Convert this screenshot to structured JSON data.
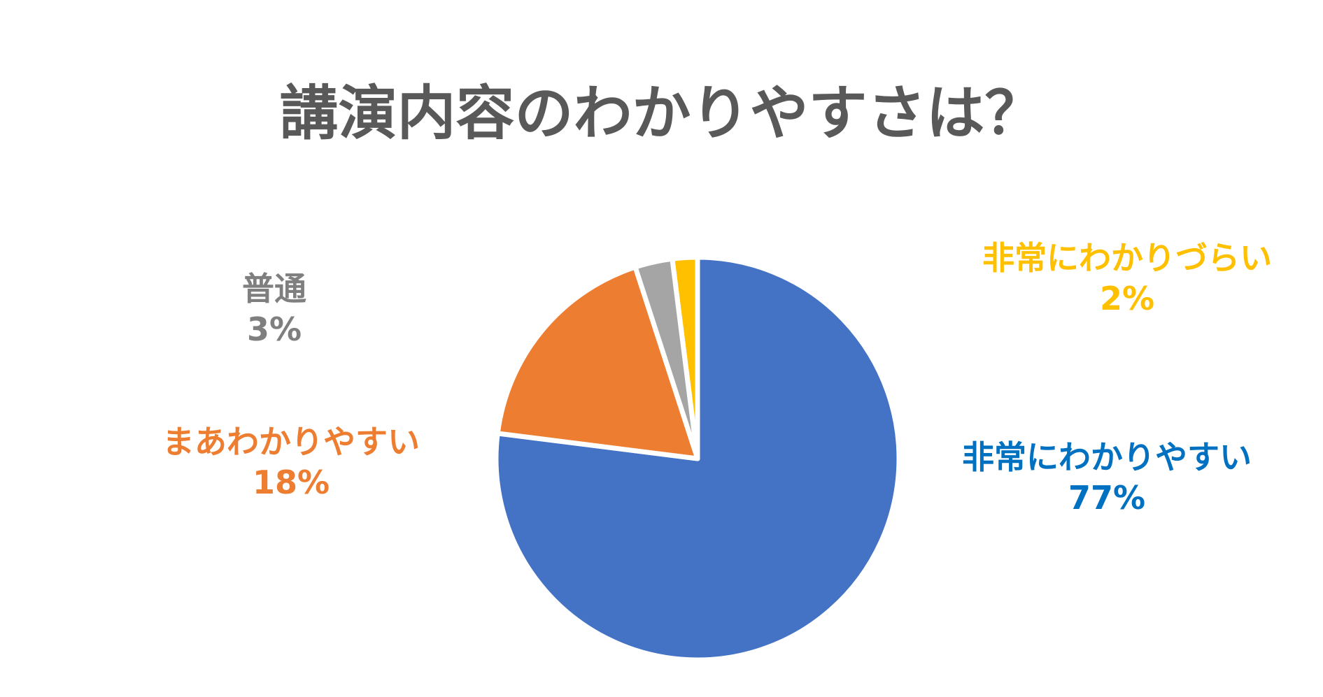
{
  "chart_data": {
    "type": "pie",
    "title": "講演内容のわかりやすさは？",
    "start": "top",
    "direction": "clockwise",
    "slices": [
      {
        "label": "非常にわかりやすい",
        "value": 77,
        "value_label": "77%",
        "color": "#4472C4",
        "label_color": "#0070C0"
      },
      {
        "label": "まあわかりやすい",
        "value": 18,
        "value_label": "18%",
        "color": "#ED7D31",
        "label_color": "#ED7D31"
      },
      {
        "label": "普通",
        "value": 3,
        "value_label": "3%",
        "color": "#A5A5A5",
        "label_color": "#7F7F7F"
      },
      {
        "label": "非常にわかりづらい",
        "value": 2,
        "value_label": "2%",
        "color": "#FFC000",
        "label_color": "#FFC000"
      }
    ]
  }
}
